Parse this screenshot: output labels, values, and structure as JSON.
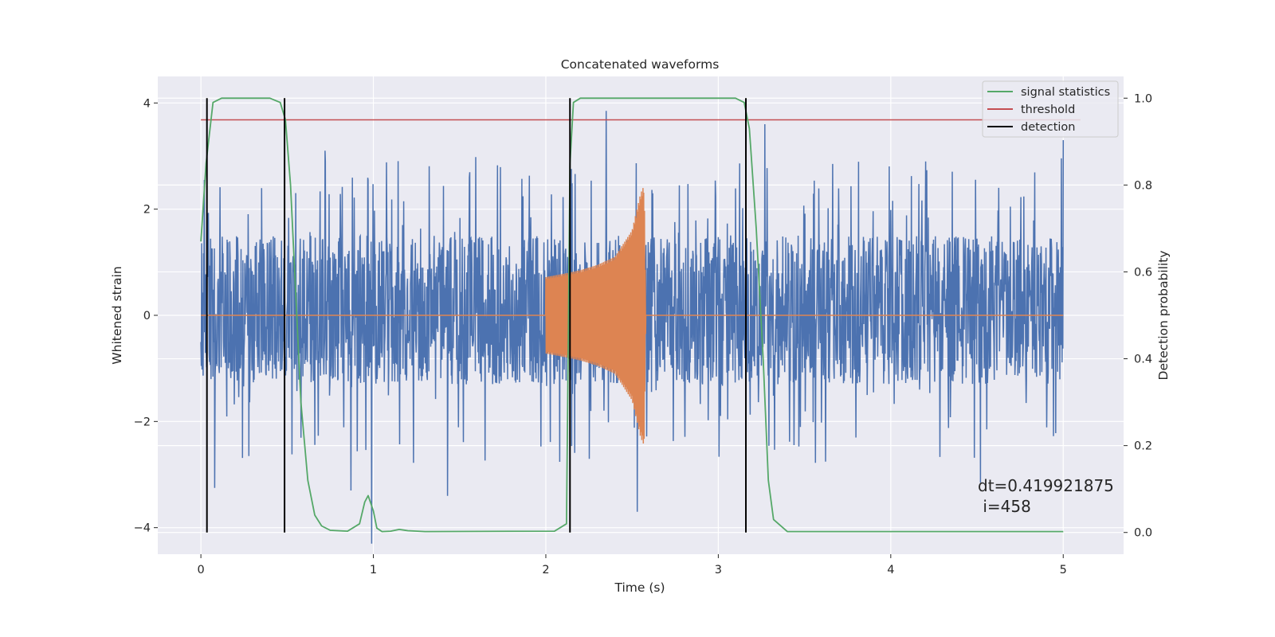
{
  "chart_data": {
    "type": "line",
    "title": "Concatenated waveforms",
    "xlabel": "Time (s)",
    "ylabel": "Whitened strain",
    "y2label": "Detection probability",
    "xlim": [
      -0.25,
      5.35
    ],
    "ylim": [
      -4.5,
      4.5
    ],
    "y2lim": [
      -0.05,
      1.05
    ],
    "xticks": [
      0,
      1,
      2,
      3,
      4,
      5
    ],
    "yticks": [
      -4,
      -2,
      0,
      2,
      4
    ],
    "y2ticks": [
      0.0,
      0.2,
      0.4,
      0.6,
      0.8,
      1.0
    ],
    "ytick_labels": [
      "−4",
      "−2",
      "0",
      "2",
      "4"
    ],
    "y2tick_labels": [
      "0.0",
      "0.2",
      "0.4",
      "0.6",
      "0.8",
      "1.0"
    ],
    "grid": true,
    "legend_placement": "top-right",
    "background_color": "#eaeaf2",
    "series": [
      {
        "name": "strain",
        "axis": "left",
        "color": "#4c72b0",
        "kind": "noise",
        "x_range": [
          0,
          5
        ],
        "typical_envelope": [
          -1.3,
          1.5
        ],
        "notable_peaks": [
          [
            0.02,
            2.55
          ],
          [
            0.72,
            3.1
          ],
          [
            1.43,
            3.2
          ],
          [
            2.35,
            3.85
          ],
          [
            3.27,
            3.6
          ],
          [
            5.0,
            3.3
          ]
        ],
        "notable_troughs": [
          [
            0.08,
            -3.25
          ],
          [
            0.87,
            -3.3
          ],
          [
            0.99,
            -4.3
          ],
          [
            1.43,
            -3.4
          ],
          [
            2.53,
            -3.7
          ],
          [
            4.52,
            -3.15
          ]
        ]
      },
      {
        "name": "injected signal",
        "axis": "left",
        "color": "#dd8452",
        "kind": "chirp",
        "x": [
          2.0,
          2.1,
          2.2,
          2.3,
          2.4,
          2.5,
          2.55,
          2.57,
          2.58
        ],
        "amplitude": [
          0.72,
          0.78,
          0.85,
          0.95,
          1.1,
          1.6,
          2.3,
          2.45,
          0.03
        ]
      },
      {
        "name": "signal statistics",
        "axis": "right",
        "color": "#55a868",
        "x": [
          0.0,
          0.03,
          0.07,
          0.12,
          0.2,
          0.4,
          0.46,
          0.49,
          0.52,
          0.55,
          0.58,
          0.62,
          0.66,
          0.7,
          0.75,
          0.85,
          0.92,
          0.95,
          0.97,
          1.0,
          1.02,
          1.05,
          1.1,
          1.15,
          1.2,
          1.3,
          2.05,
          2.12,
          2.14,
          2.16,
          2.2,
          2.3,
          3.1,
          3.15,
          3.18,
          3.22,
          3.26,
          3.29,
          3.32,
          3.4,
          5.0
        ],
        "y": [
          0.67,
          0.85,
          0.99,
          1.0,
          1.0,
          1.0,
          0.99,
          0.95,
          0.8,
          0.55,
          0.3,
          0.12,
          0.04,
          0.015,
          0.005,
          0.003,
          0.02,
          0.07,
          0.085,
          0.05,
          0.01,
          0.002,
          0.003,
          0.007,
          0.004,
          0.002,
          0.003,
          0.02,
          0.85,
          0.99,
          1.0,
          1.0,
          1.0,
          0.99,
          0.93,
          0.7,
          0.4,
          0.12,
          0.03,
          0.002,
          0.002
        ]
      },
      {
        "name": "threshold",
        "axis": "right",
        "color": "#c44e52",
        "x": [
          0,
          5.1
        ],
        "y": [
          0.95,
          0.95
        ]
      },
      {
        "name": "detection",
        "axis": "right",
        "color": "#000000",
        "kind": "vertical_lines",
        "x": [
          0.035,
          0.485,
          2.14,
          3.16
        ],
        "y_range": [
          0.0,
          1.0
        ]
      }
    ],
    "legend": [
      "signal statistics",
      "threshold",
      "detection"
    ],
    "annotation": [
      "dt=0.419921875",
      " i=458"
    ]
  }
}
